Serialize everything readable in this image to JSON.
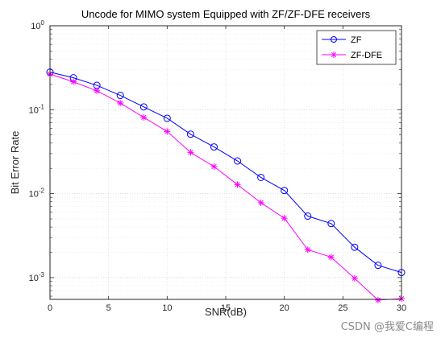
{
  "chart_data": {
    "type": "line",
    "title": "Uncode for MIMO system Equipped with ZF/ZF-DFE receivers",
    "xlabel": "SNR(dB)",
    "ylabel": "Bit Error Rate",
    "xlim": [
      0,
      30
    ],
    "ylim": [
      0.00055,
      1
    ],
    "yscale": "log",
    "grid": true,
    "legend_position": "top-right",
    "x_ticks": [
      "0",
      "5",
      "10",
      "15",
      "20",
      "25",
      "30"
    ],
    "y_ticks": [
      {
        "base": "10",
        "exp": "0"
      },
      {
        "base": "10",
        "exp": "-1"
      },
      {
        "base": "10",
        "exp": "-2"
      },
      {
        "base": "10",
        "exp": "-3"
      }
    ],
    "x": [
      0,
      2,
      4,
      6,
      8,
      10,
      12,
      14,
      16,
      18,
      20,
      22,
      24,
      26,
      28,
      30
    ],
    "series": [
      {
        "name": "ZF",
        "color": "#0000ff",
        "marker": "circle",
        "values": [
          0.28,
          0.24,
          0.195,
          0.148,
          0.108,
          0.079,
          0.051,
          0.036,
          0.0245,
          0.0156,
          0.0109,
          0.0054,
          0.0044,
          0.0023,
          0.0014,
          0.00115
        ]
      },
      {
        "name": "ZF-DFE",
        "color": "#ff00ff",
        "marker": "asterisk",
        "values": [
          0.265,
          0.215,
          0.168,
          0.12,
          0.081,
          0.055,
          0.031,
          0.021,
          0.0128,
          0.0078,
          0.0051,
          0.00215,
          0.00175,
          0.00098,
          0.00054,
          0.00056
        ]
      }
    ]
  },
  "watermark": "CSDN @我爱C编程"
}
